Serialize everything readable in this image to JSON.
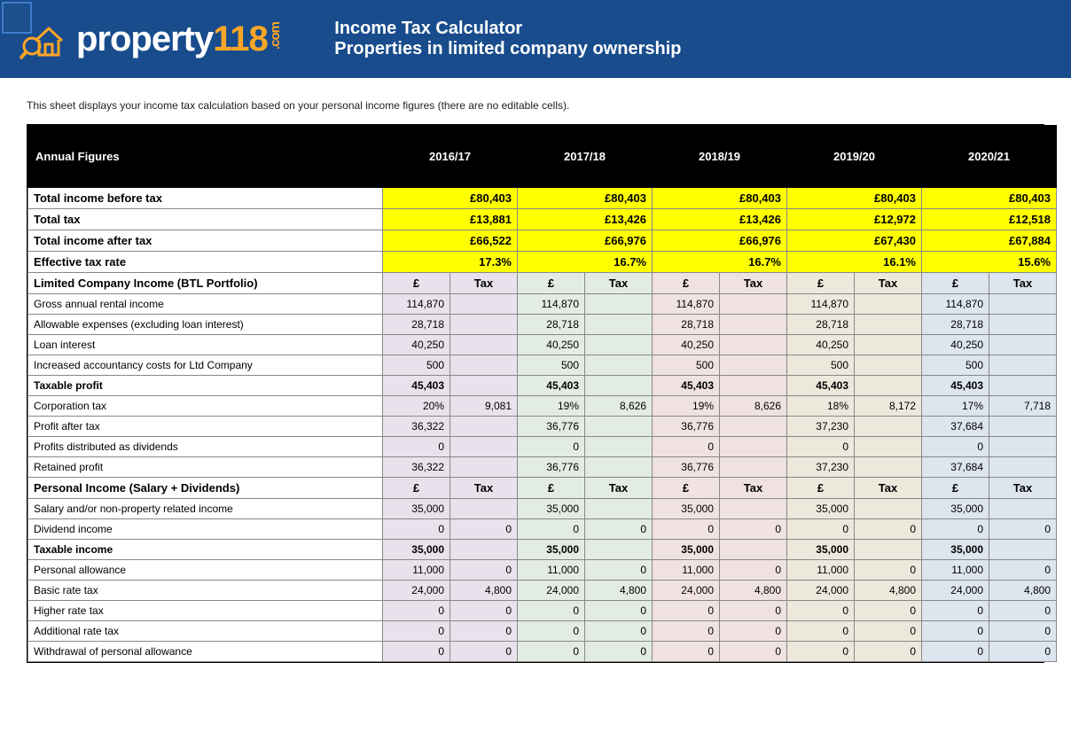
{
  "banner": {
    "logo_word": "property",
    "logo_num": "118",
    "logo_suffix": ".com",
    "title1": "Income Tax Calculator",
    "title2": "Properties in limited company ownership",
    "bg": "#184c8c",
    "accent": "#ffa626"
  },
  "note": "This sheet displays your income tax calculation based on your personal income figures (there are no editable cells).",
  "years": [
    "2016/17",
    "2017/18",
    "2018/19",
    "2019/20",
    "2020/21"
  ],
  "year_tints": [
    "#e8e2ec",
    "#e3ece2",
    "#f1e2e2",
    "#ece8dc",
    "#dde5ef"
  ],
  "annual_label": "Annual Figures",
  "highlight_bg": "#ffff00",
  "summary": [
    {
      "label": "Total income before tax",
      "vals": [
        "£80,403",
        "£80,403",
        "£80,403",
        "£80,403",
        "£80,403"
      ]
    },
    {
      "label": "Total tax",
      "vals": [
        "£13,881",
        "£13,426",
        "£13,426",
        "£12,972",
        "£12,518"
      ]
    },
    {
      "label": "Total income after tax",
      "vals": [
        "£66,522",
        "£66,976",
        "£66,976",
        "£67,430",
        "£67,884"
      ]
    },
    {
      "label": "Effective tax rate",
      "vals": [
        "17.3%",
        "16.7%",
        "16.7%",
        "16.1%",
        "15.6%"
      ]
    }
  ],
  "section1": {
    "title": "Limited Company Income (BTL Portfolio)",
    "col_a": "£",
    "col_b": "Tax",
    "rows": [
      {
        "label": "Gross annual rental income",
        "a": [
          "114,870",
          "114,870",
          "114,870",
          "114,870",
          "114,870"
        ],
        "b": [
          "",
          "",
          "",
          "",
          ""
        ]
      },
      {
        "label": "Allowable expenses (excluding loan interest)",
        "a": [
          "28,718",
          "28,718",
          "28,718",
          "28,718",
          "28,718"
        ],
        "b": [
          "",
          "",
          "",
          "",
          ""
        ]
      },
      {
        "label": "Loan interest",
        "a": [
          "40,250",
          "40,250",
          "40,250",
          "40,250",
          "40,250"
        ],
        "b": [
          "",
          "",
          "",
          "",
          ""
        ]
      },
      {
        "label": "Increased accountancy costs for Ltd Company",
        "a": [
          "500",
          "500",
          "500",
          "500",
          "500"
        ],
        "b": [
          "",
          "",
          "",
          "",
          ""
        ]
      },
      {
        "label": "Taxable profit",
        "bold": true,
        "a": [
          "45,403",
          "45,403",
          "45,403",
          "45,403",
          "45,403"
        ],
        "b": [
          "",
          "",
          "",
          "",
          ""
        ]
      },
      {
        "label": "Corporation tax",
        "a": [
          "20%",
          "19%",
          "19%",
          "18%",
          "17%"
        ],
        "b": [
          "9,081",
          "8,626",
          "8,626",
          "8,172",
          "7,718"
        ]
      },
      {
        "label": "Profit after tax",
        "a": [
          "36,322",
          "36,776",
          "36,776",
          "37,230",
          "37,684"
        ],
        "b": [
          "",
          "",
          "",
          "",
          ""
        ]
      },
      {
        "label": "Profits distributed as dividends",
        "a": [
          "0",
          "0",
          "0",
          "0",
          "0"
        ],
        "b": [
          "",
          "",
          "",
          "",
          ""
        ]
      },
      {
        "label": "Retained profit",
        "a": [
          "36,322",
          "36,776",
          "36,776",
          "37,230",
          "37,684"
        ],
        "b": [
          "",
          "",
          "",
          "",
          ""
        ]
      }
    ]
  },
  "section2": {
    "title": "Personal Income (Salary + Dividends)",
    "col_a": "£",
    "col_b": "Tax",
    "rows": [
      {
        "label": "Salary and/or non-property related income",
        "a": [
          "35,000",
          "35,000",
          "35,000",
          "35,000",
          "35,000"
        ],
        "b": [
          "",
          "",
          "",
          "",
          ""
        ]
      },
      {
        "label": "Dividend income",
        "a": [
          "0",
          "0",
          "0",
          "0",
          "0"
        ],
        "b": [
          "0",
          "0",
          "0",
          "0",
          "0"
        ]
      },
      {
        "label": "Taxable income",
        "bold": true,
        "a": [
          "35,000",
          "35,000",
          "35,000",
          "35,000",
          "35,000"
        ],
        "b": [
          "",
          "",
          "",
          "",
          ""
        ]
      },
      {
        "label": "Personal allowance",
        "a": [
          "11,000",
          "11,000",
          "11,000",
          "11,000",
          "11,000"
        ],
        "b": [
          "0",
          "0",
          "0",
          "0",
          "0"
        ]
      },
      {
        "label": "Basic rate tax",
        "a": [
          "24,000",
          "24,000",
          "24,000",
          "24,000",
          "24,000"
        ],
        "b": [
          "4,800",
          "4,800",
          "4,800",
          "4,800",
          "4,800"
        ]
      },
      {
        "label": "Higher rate tax",
        "a": [
          "0",
          "0",
          "0",
          "0",
          "0"
        ],
        "b": [
          "0",
          "0",
          "0",
          "0",
          "0"
        ]
      },
      {
        "label": "Additional rate tax",
        "a": [
          "0",
          "0",
          "0",
          "0",
          "0"
        ],
        "b": [
          "0",
          "0",
          "0",
          "0",
          "0"
        ]
      },
      {
        "label": "Withdrawal of personal allowance",
        "a": [
          "0",
          "0",
          "0",
          "0",
          "0"
        ],
        "b": [
          "0",
          "0",
          "0",
          "0",
          "0"
        ]
      }
    ]
  }
}
